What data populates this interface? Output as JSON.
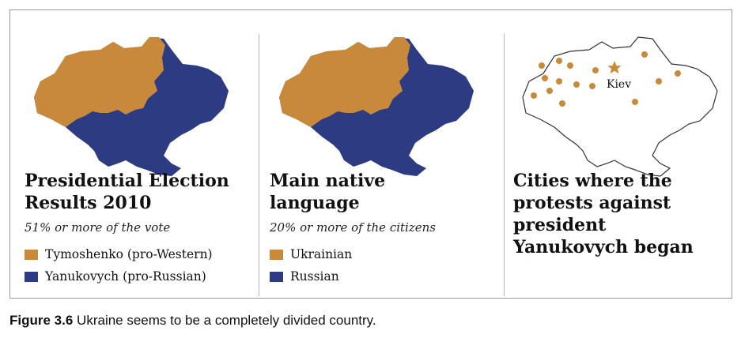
{
  "colors": {
    "west": "#C9893A",
    "east": "#2D3B82",
    "map_outline": "#333333",
    "city_marker": "#C9893A"
  },
  "panels": [
    {
      "title_lines": [
        "Presidential Election",
        "Results 2010"
      ],
      "subtitle": "51% or more of the vote",
      "legend": [
        {
          "label": "Tymoshenko (pro-Western)",
          "color": "#C9893A"
        },
        {
          "label": "Yanukovych (pro-Russian)",
          "color": "#2D3B82"
        }
      ]
    },
    {
      "title_lines": [
        "Main native",
        "language"
      ],
      "subtitle": "20% or more of the citizens",
      "legend": [
        {
          "label": "Ukrainian",
          "color": "#C9893A"
        },
        {
          "label": "Russian",
          "color": "#2D3B82"
        }
      ]
    },
    {
      "title_lines": [
        "Cities where the",
        "protests against",
        "president",
        "Yanukovych began"
      ],
      "capital_label": "Kiev",
      "capital_icon": "star-icon",
      "city_icon": "dot-icon"
    }
  ],
  "caption": {
    "label": "Figure 3.6",
    "text": "Ukraine seems to be a completely divided country."
  }
}
